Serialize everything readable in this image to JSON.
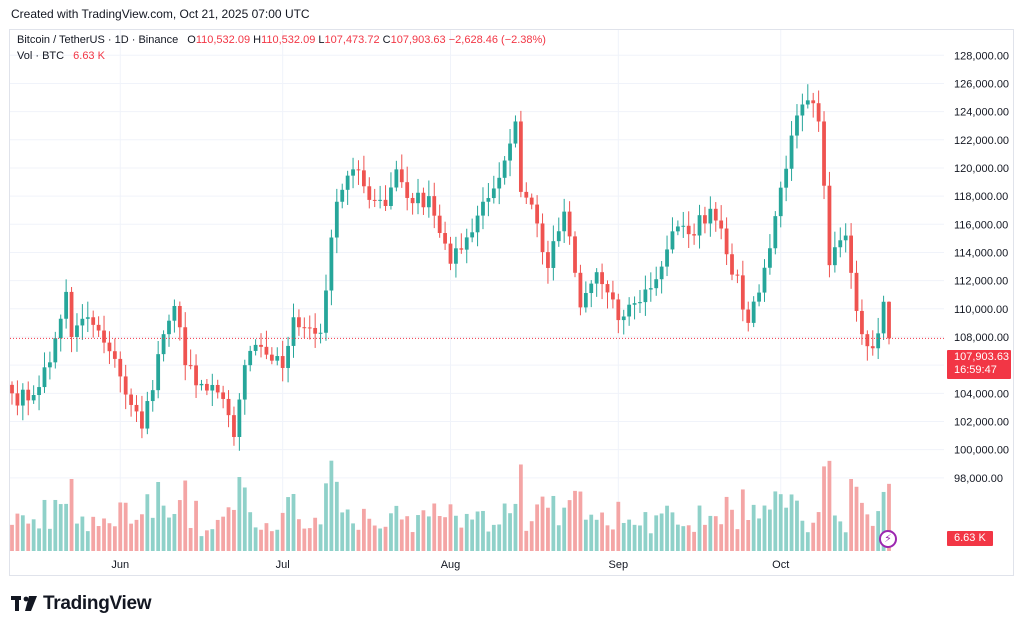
{
  "header": {
    "created_text": "Created with TradingView.com, Oct 21, 2025 07:00 UTC"
  },
  "legend": {
    "symbol": "Bitcoin / TetherUS · 1D · Binance",
    "open_label": "O",
    "open": "110,532.09",
    "high_label": "H",
    "high": "110,532.09",
    "low_label": "L",
    "low": "107,473.72",
    "close_label": "C",
    "close": "107,903.63",
    "change": "−2,628.46 (−2.38%)",
    "vol_label": "Vol · BTC",
    "vol_value": "6.63 K"
  },
  "price_tag": {
    "price": "107,903.63",
    "countdown": "16:59:47"
  },
  "volume_tag": "6.63 K",
  "footer": {
    "logo_text": "TradingView",
    "logo_mark": "17"
  },
  "icons": {
    "volume_bolt": "lightning-icon"
  },
  "colors": {
    "up": "#26a69a",
    "down": "#ef5350",
    "up_volume": "#8fd1c9",
    "down_volume": "#f4a5a5",
    "tag": "#f23645",
    "bolt": "#9c27b0"
  },
  "chart_data": {
    "type": "candlestick",
    "y_axis": {
      "side": "right",
      "range": [
        93800,
        128800
      ],
      "ticks": [
        98000,
        100000,
        102000,
        104000,
        106000,
        108000,
        110000,
        112000,
        114000,
        116000,
        118000,
        120000,
        122000,
        124000,
        126000,
        128000
      ],
      "tick_labels": [
        "98,000.00",
        "100,000.00",
        "102,000.00",
        "104,000.00",
        "106,000.00",
        "108,000.00",
        "110,000.00",
        "112,000.00",
        "114,000.00",
        "116,000.00",
        "118,000.00",
        "120,000.00",
        "122,000.00",
        "124,000.00",
        "126,000.00",
        "128,000.00"
      ]
    },
    "x_axis": {
      "labels": [
        "Jun",
        "Jul",
        "Aug",
        "Sep",
        "Oct"
      ],
      "label_dates": [
        "2025-06-01",
        "2025-07-01",
        "2025-08-01",
        "2025-09-01",
        "2025-10-01"
      ],
      "start": "2025-05-12",
      "end": "2025-10-21"
    },
    "last_price": 107903.63,
    "grid": true,
    "series": [
      {
        "name": "BTCUSDT",
        "anchors": [
          [
            "2025-05-12",
            104000
          ],
          [
            "2025-05-15",
            103500
          ],
          [
            "2025-05-19",
            106200
          ],
          [
            "2025-05-22",
            111200
          ],
          [
            "2025-05-23",
            108000
          ],
          [
            "2025-05-26",
            109400
          ],
          [
            "2025-05-29",
            107600
          ],
          [
            "2025-06-01",
            105200
          ],
          [
            "2025-06-05",
            101500
          ],
          [
            "2025-06-09",
            108200
          ],
          [
            "2025-06-11",
            110200
          ],
          [
            "2025-06-13",
            106000
          ],
          [
            "2025-06-17",
            104200
          ],
          [
            "2025-06-20",
            103600
          ],
          [
            "2025-06-22",
            100900
          ],
          [
            "2025-06-24",
            106000
          ],
          [
            "2025-06-27",
            107300
          ],
          [
            "2025-07-01",
            105800
          ],
          [
            "2025-07-03",
            109400
          ],
          [
            "2025-07-08",
            108300
          ],
          [
            "2025-07-09",
            111300
          ],
          [
            "2025-07-11",
            117600
          ],
          [
            "2025-07-14",
            119900
          ],
          [
            "2025-07-16",
            118700
          ],
          [
            "2025-07-20",
            117300
          ],
          [
            "2025-07-22",
            119900
          ],
          [
            "2025-07-25",
            117500
          ],
          [
            "2025-07-28",
            118000
          ],
          [
            "2025-08-01",
            113200
          ],
          [
            "2025-08-03",
            114200
          ],
          [
            "2025-08-07",
            117600
          ],
          [
            "2025-08-10",
            119300
          ],
          [
            "2025-08-13",
            123300
          ],
          [
            "2025-08-14",
            118300
          ],
          [
            "2025-08-16",
            117400
          ],
          [
            "2025-08-19",
            112900
          ],
          [
            "2025-08-22",
            116900
          ],
          [
            "2025-08-25",
            110100
          ],
          [
            "2025-08-28",
            112600
          ],
          [
            "2025-09-01",
            109200
          ],
          [
            "2025-09-04",
            110400
          ],
          [
            "2025-09-08",
            112100
          ],
          [
            "2025-09-11",
            115500
          ],
          [
            "2025-09-14",
            115300
          ],
          [
            "2025-09-18",
            117100
          ],
          [
            "2025-09-20",
            115700
          ],
          [
            "2025-09-25",
            109000
          ],
          [
            "2025-09-29",
            114300
          ],
          [
            "2025-10-01",
            118600
          ],
          [
            "2025-10-03",
            122300
          ],
          [
            "2025-10-06",
            124800
          ],
          [
            "2025-10-08",
            123300
          ],
          [
            "2025-10-10",
            113100
          ],
          [
            "2025-10-13",
            115200
          ],
          [
            "2025-10-16",
            108200
          ],
          [
            "2025-10-18",
            107200
          ],
          [
            "2025-10-20",
            110500
          ],
          [
            "2025-10-21",
            107903.63
          ]
        ]
      }
    ],
    "volume": {
      "label": "Vol · BTC",
      "last": "6.63 K"
    }
  }
}
